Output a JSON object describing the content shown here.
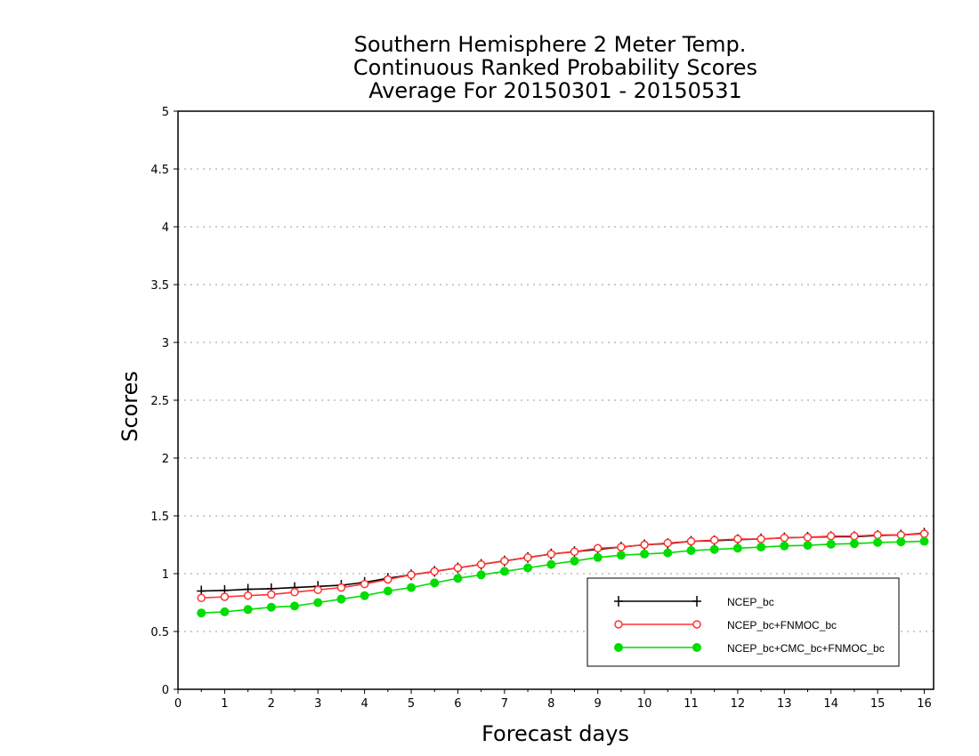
{
  "chart_data": {
    "type": "line",
    "title": [
      "Southern Hemisphere 2 Meter Temp.",
      "Continuous Ranked Probability Scores",
      "Average For 20150301 - 20150531"
    ],
    "xlabel": "Forecast days",
    "ylabel": "Scores",
    "xlim": [
      0,
      16.2
    ],
    "ylim": [
      0,
      5
    ],
    "xticks": [
      "0",
      "1",
      "2",
      "3",
      "4",
      "5",
      "6",
      "7",
      "8",
      "9",
      "10",
      "11",
      "12",
      "13",
      "14",
      "15",
      "16"
    ],
    "yticks": [
      "0",
      "0.5",
      "1",
      "1.5",
      "2",
      "2.5",
      "3",
      "3.5",
      "4",
      "4.5",
      "5"
    ],
    "grid": "horizontal dotted",
    "legend_position": "bottom-right",
    "x": [
      0.5,
      1,
      1.5,
      2,
      2.5,
      3,
      3.5,
      4,
      4.5,
      5,
      5.5,
      6,
      6.5,
      7,
      7.5,
      8,
      8.5,
      9,
      9.5,
      10,
      10.5,
      11,
      11.5,
      12,
      12.5,
      13,
      13.5,
      14,
      14.5,
      15,
      15.5,
      16
    ],
    "series": [
      {
        "name": "NCEP_bc",
        "color": "#000000",
        "marker": "plus",
        "values": [
          0.85,
          0.855,
          0.865,
          0.87,
          0.88,
          0.89,
          0.9,
          0.925,
          0.96,
          0.99,
          1.02,
          1.05,
          1.08,
          1.11,
          1.14,
          1.17,
          1.19,
          1.21,
          1.23,
          1.25,
          1.26,
          1.28,
          1.285,
          1.295,
          1.3,
          1.31,
          1.315,
          1.32,
          1.32,
          1.33,
          1.335,
          1.35
        ]
      },
      {
        "name": "NCEP_bc+FNMOC_bc",
        "color": "#ff3333",
        "marker": "open-circle",
        "values": [
          0.79,
          0.8,
          0.81,
          0.82,
          0.84,
          0.86,
          0.88,
          0.91,
          0.95,
          0.99,
          1.02,
          1.05,
          1.08,
          1.11,
          1.14,
          1.17,
          1.19,
          1.22,
          1.23,
          1.25,
          1.265,
          1.28,
          1.29,
          1.3,
          1.3,
          1.31,
          1.315,
          1.325,
          1.325,
          1.335,
          1.335,
          1.345
        ]
      },
      {
        "name": "NCEP_bc+CMC_bc+FNMOC_bc",
        "color": "#00dd00",
        "marker": "filled-circle",
        "values": [
          0.66,
          0.67,
          0.69,
          0.71,
          0.72,
          0.75,
          0.78,
          0.81,
          0.85,
          0.88,
          0.92,
          0.96,
          0.99,
          1.02,
          1.05,
          1.08,
          1.11,
          1.14,
          1.16,
          1.17,
          1.18,
          1.2,
          1.21,
          1.22,
          1.23,
          1.24,
          1.245,
          1.255,
          1.26,
          1.27,
          1.275,
          1.28
        ]
      }
    ]
  }
}
